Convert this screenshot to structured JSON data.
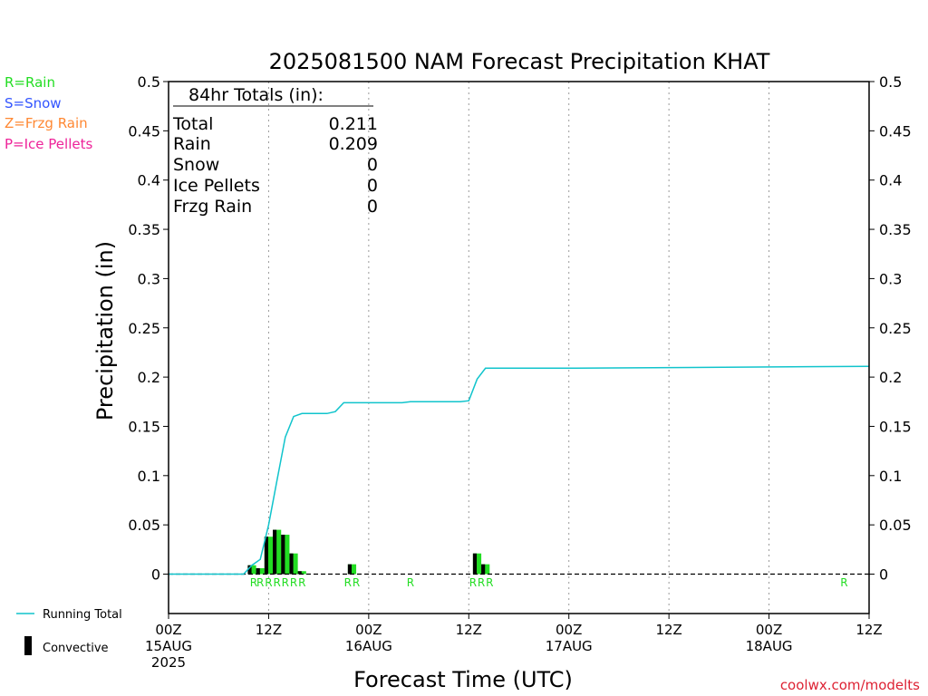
{
  "chart_data": {
    "type": "bar",
    "title": "2025081500 NAM Forecast Precipitation KHAT",
    "xlabel": "Forecast Time (UTC)",
    "ylabel": "Precipitation (in)",
    "ylim": [
      -0.04,
      0.5
    ],
    "xlim_hours": [
      0,
      84
    ],
    "yticks": [
      0,
      0.05,
      0.1,
      0.15,
      0.2,
      0.25,
      0.3,
      0.35,
      0.4,
      0.45,
      0.5
    ],
    "ytick_labels": [
      "0",
      "0.05",
      "0.1",
      "0.15",
      "0.2",
      "0.25",
      "0.3",
      "0.35",
      "0.4",
      "0.45",
      "0.5"
    ],
    "xticks": [
      {
        "hour": 0,
        "lines": [
          "00Z",
          "15AUG",
          "2025"
        ]
      },
      {
        "hour": 12,
        "lines": [
          "12Z"
        ]
      },
      {
        "hour": 24,
        "lines": [
          "00Z",
          "16AUG"
        ]
      },
      {
        "hour": 36,
        "lines": [
          "12Z"
        ]
      },
      {
        "hour": 48,
        "lines": [
          "00Z",
          "17AUG"
        ]
      },
      {
        "hour": 60,
        "lines": [
          "12Z"
        ]
      },
      {
        "hour": 72,
        "lines": [
          "00Z",
          "18AUG"
        ]
      },
      {
        "hour": 84,
        "lines": [
          "12Z"
        ]
      }
    ],
    "gridlines_hours": [
      12,
      24,
      36,
      48,
      60,
      72
    ],
    "ptype_legend": [
      {
        "label": "R=Rain",
        "color": "#22dd22"
      },
      {
        "label": "S=Snow",
        "color": "#3355ff"
      },
      {
        "label": "Z=Frzg Rain",
        "color": "#ff8833"
      },
      {
        "label": "P=Ice Pellets",
        "color": "#ee2299"
      }
    ],
    "series": [
      {
        "name": "Running Total",
        "color": "#11c4cc",
        "x_hours": [
          0,
          9,
          10,
          11,
          12,
          13,
          14,
          15,
          16,
          17,
          18,
          19,
          20,
          21,
          22,
          23,
          24,
          25,
          26,
          27,
          28,
          29,
          30,
          31,
          32,
          33,
          34,
          35,
          36,
          37,
          38,
          39,
          40,
          48,
          84
        ],
        "values": [
          0,
          0,
          0.009,
          0.015,
          0.05,
          0.095,
          0.139,
          0.16,
          0.163,
          0.163,
          0.163,
          0.163,
          0.165,
          0.174,
          0.174,
          0.174,
          0.174,
          0.174,
          0.174,
          0.174,
          0.174,
          0.175,
          0.175,
          0.175,
          0.175,
          0.175,
          0.175,
          0.175,
          0.176,
          0.198,
          0.209,
          0.209,
          0.209,
          0.209,
          0.211
        ]
      },
      {
        "name": "Convective",
        "color": "#000000",
        "type": "bar",
        "x_hours": [
          10,
          11,
          12,
          13,
          14,
          15,
          16,
          22,
          37,
          38
        ],
        "values": [
          0.009,
          0.006,
          0.038,
          0.045,
          0.04,
          0.021,
          0.003,
          0.01,
          0.021,
          0.01
        ],
        "total_values": [
          0.009,
          0.006,
          0.038,
          0.045,
          0.04,
          0.021,
          0.003,
          0.01,
          0.021,
          0.01
        ],
        "total_color": "#22dd22"
      }
    ],
    "ptype_markers": [
      {
        "hour": 10.2,
        "letter": "R"
      },
      {
        "hour": 11,
        "letter": "R"
      },
      {
        "hour": 12,
        "letter": "R"
      },
      {
        "hour": 13,
        "letter": "R"
      },
      {
        "hour": 14,
        "letter": "R"
      },
      {
        "hour": 15,
        "letter": "R"
      },
      {
        "hour": 16,
        "letter": "R"
      },
      {
        "hour": 21.5,
        "letter": "R"
      },
      {
        "hour": 22.5,
        "letter": "R"
      },
      {
        "hour": 29,
        "letter": "R"
      },
      {
        "hour": 36.5,
        "letter": "R"
      },
      {
        "hour": 37.5,
        "letter": "R"
      },
      {
        "hour": 38.5,
        "letter": "R"
      },
      {
        "hour": 81,
        "letter": "R"
      }
    ],
    "totals_box": {
      "heading": "84hr Totals (in):",
      "rows": [
        {
          "label": "Total",
          "value": "0.211"
        },
        {
          "label": "Rain",
          "value": "0.209"
        },
        {
          "label": "Snow",
          "value": "0"
        },
        {
          "label": "Ice Pellets",
          "value": "0"
        },
        {
          "label": "Frzg Rain",
          "value": "0"
        }
      ]
    },
    "legend": {
      "running_total": "Running Total",
      "convective": "Convective"
    },
    "credit": "coolwx.com/modelts",
    "credit_color": "#dd2233"
  }
}
